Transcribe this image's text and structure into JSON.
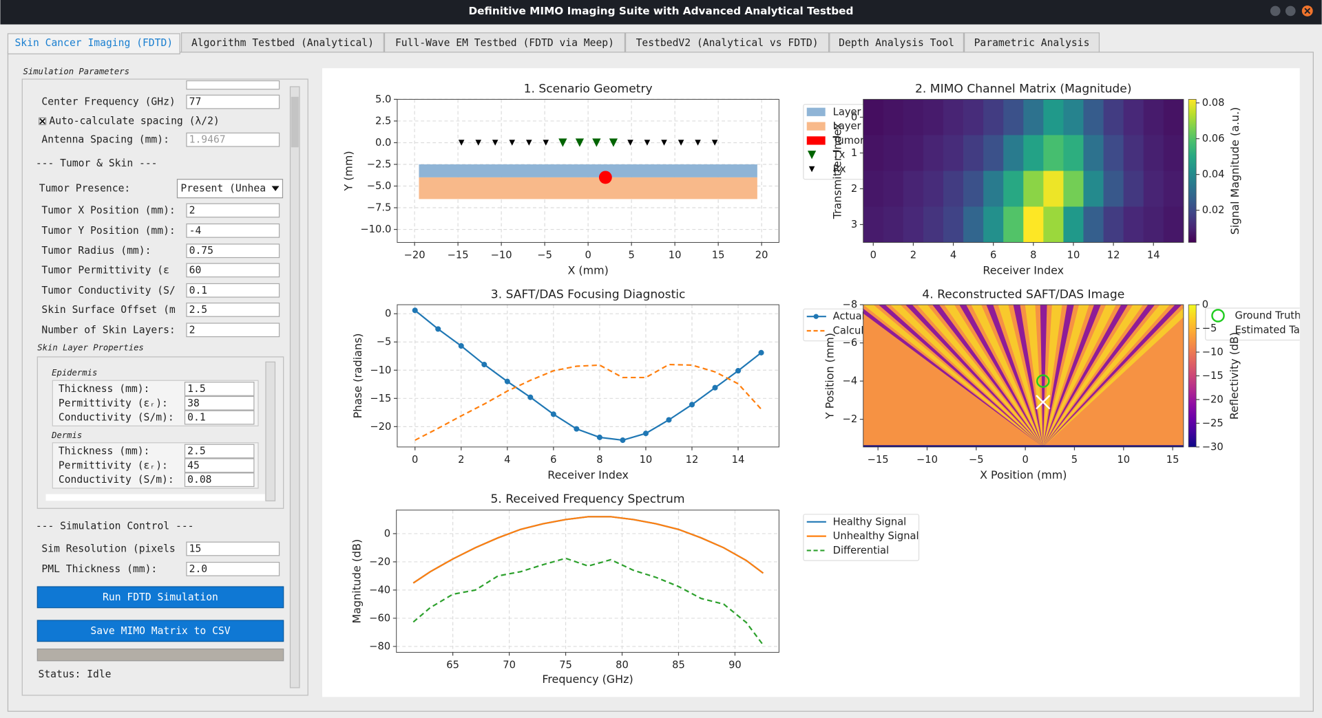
{
  "window": {
    "title": "Definitive MIMO Imaging Suite with Advanced Analytical Testbed"
  },
  "tabs": [
    "Skin Cancer Imaging (FDTD)",
    "Algorithm Testbed (Analytical)",
    "Full-Wave EM Testbed (FDTD via Meep)",
    "TestbedV2 (Analytical vs FDTD)",
    "Depth Analysis Tool",
    "Parametric Analysis"
  ],
  "panel": {
    "title": "Simulation Parameters",
    "rows": [
      {
        "kind": "field",
        "label": "Center Frequency (GHz)",
        "value": "77"
      },
      {
        "kind": "checkbox",
        "label": "Auto-calculate spacing (λ/2)",
        "checked": true
      },
      {
        "kind": "field",
        "label": "Antenna Spacing (mm):",
        "value": "1.9467",
        "disabled": true
      },
      {
        "kind": "heading",
        "label": "--- Tumor & Skin ---"
      },
      {
        "kind": "dropdown",
        "label": "Tumor Presence:",
        "value": "Present (Unhea"
      },
      {
        "kind": "field",
        "label": "Tumor X Position (mm):",
        "value": "2"
      },
      {
        "kind": "field",
        "label": "Tumor Y Position (mm):",
        "value": "-4"
      },
      {
        "kind": "field",
        "label": "Tumor Radius (mm):",
        "value": "0.75"
      },
      {
        "kind": "field",
        "label": "Tumor Permittivity (ε",
        "value": "60"
      },
      {
        "kind": "field",
        "label": "Tumor Conductivity (S/",
        "value": "0.1"
      },
      {
        "kind": "field",
        "label": "Skin Surface Offset (m",
        "value": "2.5"
      },
      {
        "kind": "field",
        "label": "Number of Skin Layers:",
        "value": "2"
      }
    ],
    "layers_title": "Skin Layer Properties",
    "layers": [
      {
        "name": "Epidermis",
        "rows": [
          {
            "label": "Thickness (mm):",
            "value": "1.5"
          },
          {
            "label": "Permittivity (εᵣ):",
            "value": "38"
          },
          {
            "label": "Conductivity (S/m):",
            "value": "0.1"
          }
        ]
      },
      {
        "name": "Dermis",
        "rows": [
          {
            "label": "Thickness (mm):",
            "value": "2.5"
          },
          {
            "label": "Permittivity (εᵣ):",
            "value": "45"
          },
          {
            "label": "Conductivity (S/m):",
            "value": "0.08"
          }
        ]
      }
    ],
    "control_title": "--- Simulation Control ---",
    "control_rows": [
      {
        "label": "Sim Resolution (pixels",
        "value": "15"
      },
      {
        "label": "PML Thickness (mm):",
        "value": "2.0"
      }
    ],
    "buttons": [
      "Run FDTD Simulation",
      "Save MIMO Matrix to CSV"
    ],
    "status": "Status: Idle"
  },
  "charts": [
    {
      "type": "geometry",
      "title": "1. Scenario Geometry",
      "xlabel": "X (mm)",
      "ylabel": "Y (mm)",
      "xlim": [
        -22,
        22
      ],
      "ylim": [
        -11.5,
        5.0
      ],
      "grid": true,
      "xticks": [
        {
          "value": -20,
          "label": "−20"
        },
        {
          "value": -15,
          "label": "−15"
        },
        {
          "value": -10,
          "label": "−10"
        },
        {
          "value": -5,
          "label": "−5"
        },
        0,
        5,
        10,
        15,
        20
      ],
      "yticks": [
        {
          "value": 5,
          "label": "5.0"
        },
        2.5,
        {
          "value": 0,
          "label": "0.0"
        },
        {
          "value": -2.5,
          "label": "−2.5"
        },
        {
          "value": -5,
          "label": "−5.0"
        },
        {
          "value": -7.5,
          "label": "−7.5"
        },
        {
          "value": -10,
          "label": "−10.0"
        }
      ],
      "layers": [
        {
          "name": "Layer",
          "color": "#8fb4d6",
          "x": [
            -19.5,
            19.5
          ],
          "y": [
            -4.0,
            -2.5
          ]
        },
        {
          "name": "Layer",
          "color": "#f8b98a",
          "x": [
            -19.5,
            19.5
          ],
          "y": [
            -6.5,
            -4.0
          ]
        }
      ],
      "tumor": {
        "name": "Tumor",
        "color": "#ff0000",
        "x": 2,
        "y": -4,
        "radius": 0.75
      },
      "tx": {
        "name": "Tx",
        "color": "#006400",
        "x": [
          -2.92,
          -0.97,
          0.97,
          2.92
        ],
        "y": [
          0,
          0,
          0,
          0
        ]
      },
      "rx": {
        "name": "Rx",
        "color": "#000000",
        "x": [
          -14.6,
          -12.65,
          -10.71,
          -8.76,
          -6.81,
          -4.87,
          -2.92,
          -0.97,
          0.97,
          2.92,
          4.87,
          6.81,
          8.76,
          10.71,
          12.65,
          14.6
        ],
        "y": [
          0,
          0,
          0,
          0,
          0,
          0,
          0,
          0,
          0,
          0,
          0,
          0,
          0,
          0,
          0,
          0
        ]
      }
    },
    {
      "type": "heatmap",
      "title": "2. MIMO Channel Matrix (Magnitude)",
      "xlabel": "Receiver Index",
      "ylabel": "Transmitter Index",
      "colorbar_label": "Signal Magnitude (a.u.)",
      "colormap": "viridis",
      "clim": [
        0.002,
        0.082
      ],
      "xlim": [
        -0.5,
        15.5
      ],
      "ylim": [
        3.5,
        -0.5
      ],
      "xticks": [
        0,
        2,
        4,
        6,
        8,
        10,
        12,
        14
      ],
      "yticks": [
        0,
        1,
        2,
        3
      ],
      "cbar_ticks": [
        0.02,
        0.04,
        0.06,
        0.08
      ],
      "values": [
        [
          0.005,
          0.006,
          0.007,
          0.008,
          0.01,
          0.012,
          0.016,
          0.022,
          0.032,
          0.045,
          0.038,
          0.025,
          0.016,
          0.011,
          0.008,
          0.006
        ],
        [
          0.006,
          0.007,
          0.008,
          0.01,
          0.012,
          0.016,
          0.022,
          0.035,
          0.048,
          0.058,
          0.052,
          0.032,
          0.02,
          0.013,
          0.009,
          0.007
        ],
        [
          0.007,
          0.008,
          0.01,
          0.012,
          0.016,
          0.022,
          0.035,
          0.05,
          0.068,
          0.08,
          0.065,
          0.04,
          0.024,
          0.015,
          0.01,
          0.008
        ],
        [
          0.008,
          0.009,
          0.011,
          0.014,
          0.018,
          0.028,
          0.042,
          0.06,
          0.082,
          0.07,
          0.045,
          0.026,
          0.016,
          0.011,
          0.009,
          0.007
        ]
      ]
    },
    {
      "type": "line",
      "title": "3. SAFT/DAS Focusing Diagnostic",
      "xlabel": "Receiver Index",
      "ylabel": "Phase (radians)",
      "xlim": [
        -0.77,
        15.77
      ],
      "ylim": [
        -23.6,
        1.6
      ],
      "grid": true,
      "xticks": [
        0,
        2,
        4,
        6,
        8,
        10,
        12,
        14
      ],
      "yticks": [
        0,
        {
          "value": -5,
          "label": "−5"
        },
        {
          "value": -10,
          "label": "−10"
        },
        {
          "value": -15,
          "label": "−15"
        },
        {
          "value": -20,
          "label": "−20"
        }
      ],
      "x": [
        0,
        1,
        2,
        3,
        4,
        5,
        6,
        7,
        8,
        9,
        10,
        11,
        12,
        13,
        14,
        15
      ],
      "series": [
        {
          "name": "Actual",
          "color": "#1f77b4",
          "style": "solid",
          "marker": true,
          "values": [
            0.6,
            -2.7,
            -5.7,
            -9.0,
            -12.0,
            -14.8,
            -17.8,
            -20.4,
            -21.9,
            -22.4,
            -21.2,
            -18.8,
            -16.1,
            -13.1,
            -10.1,
            -6.9
          ]
        },
        {
          "name": "Calcul",
          "color": "#ff7f0e",
          "style": "dashed",
          "marker": false,
          "values": [
            -22.4,
            -20.3,
            -18.1,
            -16.0,
            -13.7,
            -11.8,
            -10.1,
            -9.3,
            -9.1,
            -11.3,
            -11.3,
            -9.0,
            -9.1,
            -10.3,
            -12.4,
            -16.9
          ]
        }
      ]
    },
    {
      "type": "image",
      "title": "4. Reconstructed SAFT/DAS Image",
      "xlabel": "X Position (mm)",
      "ylabel": "Y Position (mm)",
      "colorbar_label": "Reflectivity (dB)",
      "colormap": "plasma",
      "clim": [
        -30,
        0
      ],
      "xlim": [
        -16.5,
        16.1
      ],
      "ylim": [
        -0.55,
        -8
      ],
      "xticks": [
        {
          "value": -15,
          "label": "−15"
        },
        {
          "value": -10,
          "label": "−10"
        },
        {
          "value": -5,
          "label": "−5"
        },
        0,
        5,
        10,
        15
      ],
      "yticks": [
        {
          "value": -8,
          "label": "−8"
        },
        {
          "value": -6,
          "label": "−6"
        },
        {
          "value": -4,
          "label": "−4"
        },
        {
          "value": -2,
          "label": "−2"
        }
      ],
      "cbar_ticks": [
        0,
        {
          "value": -5,
          "label": "−5"
        },
        {
          "value": -10,
          "label": "−10"
        },
        {
          "value": -15,
          "label": "−15"
        },
        {
          "value": -20,
          "label": "−20"
        },
        {
          "value": -25,
          "label": "−25"
        },
        {
          "value": -30,
          "label": "−30"
        }
      ],
      "ground_truth": {
        "name": "Ground Truth",
        "color": "#22cc22",
        "x": 1.8,
        "y": -4.0
      },
      "estimate": {
        "name": "Estimated Tar",
        "color": "#ffffff",
        "x": 1.8,
        "y": -2.9
      }
    },
    {
      "type": "line",
      "title": "5. Received Frequency Spectrum",
      "xlabel": "Frequency (GHz)",
      "ylabel": "Magnitude (dB)",
      "xlim": [
        60,
        93.9
      ],
      "ylim": [
        -84.2,
        16.7
      ],
      "grid": true,
      "xticks": [
        65,
        70,
        75,
        80,
        85,
        90
      ],
      "yticks": [
        0,
        {
          "value": -20,
          "label": "−20"
        },
        {
          "value": -40,
          "label": "−40"
        },
        {
          "value": -60,
          "label": "−60"
        },
        {
          "value": -80,
          "label": "−80"
        }
      ],
      "x": [
        61.5,
        63,
        65,
        67,
        69,
        71,
        73,
        75,
        77,
        79,
        81,
        83,
        85,
        87,
        89,
        91,
        92.5
      ],
      "series": [
        {
          "name": "Healthy Signal",
          "color": "#1f77b4",
          "style": "solid",
          "marker": false,
          "values": [
            -35,
            -27,
            -18,
            -10,
            -3,
            3,
            7,
            10,
            12,
            12,
            10,
            7,
            3,
            -3,
            -10,
            -19,
            -28
          ]
        },
        {
          "name": "Unhealthy Signal",
          "color": "#ff7f0e",
          "style": "solid",
          "marker": false,
          "values": [
            -35,
            -27,
            -18,
            -10,
            -3,
            3,
            7,
            10,
            12,
            12,
            10,
            7,
            3,
            -3,
            -10,
            -19,
            -28
          ]
        },
        {
          "name": "Differential",
          "color": "#2ca02c",
          "style": "dashed",
          "marker": false,
          "values": [
            -62.7,
            -52.5,
            -43,
            -40,
            -30,
            -27,
            -22,
            -17.5,
            -23,
            -18.5,
            -26,
            -31,
            -37.5,
            -46,
            -50,
            -63,
            -79
          ]
        }
      ]
    }
  ]
}
